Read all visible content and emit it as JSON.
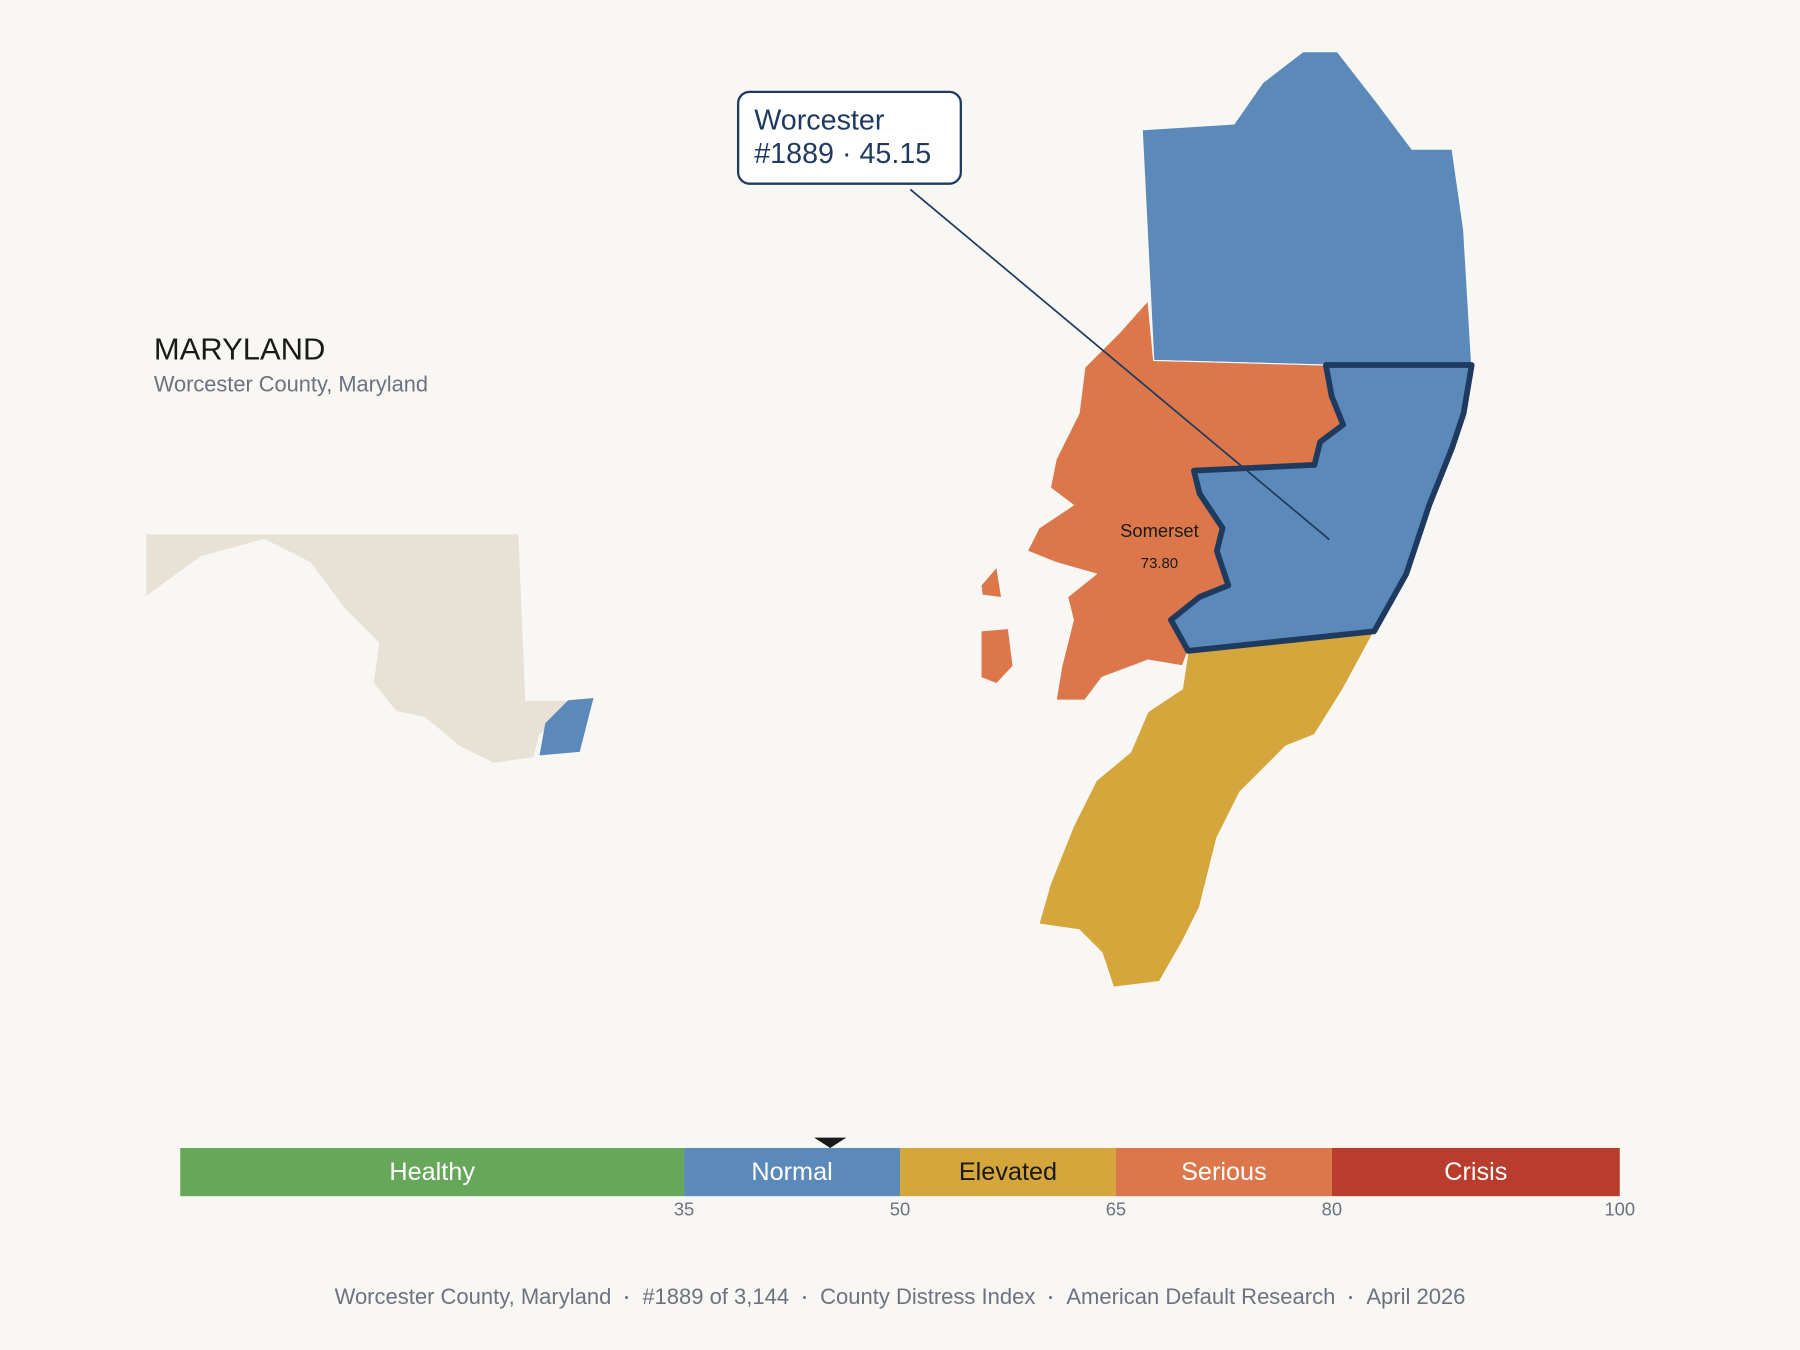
{
  "header": {
    "title": "MARYLAND",
    "subtitle": "Worcester County, Maryland"
  },
  "callout": {
    "name": "Worcester",
    "detail": "#1889 · 45.15",
    "value": 45.15
  },
  "neighbor": {
    "name": "Somerset",
    "value": 73.8,
    "value_label": "73.80"
  },
  "scale": {
    "lim": [
      0,
      100
    ],
    "ticks": [
      35,
      50,
      65,
      80,
      100
    ],
    "bands": [
      {
        "label": "Healthy",
        "color": "#67a75a"
      },
      {
        "label": "Normal",
        "color": "#5b8aba"
      },
      {
        "label": "Elevated",
        "color": "#d4a63c"
      },
      {
        "label": "Serious",
        "color": "#db774a"
      },
      {
        "label": "Crisis",
        "color": "#b93d2d"
      }
    ]
  },
  "footer": [
    "Worcester County, Maryland",
    "#1889 of 3,144",
    "County Distress Index",
    "American Default Research",
    "April 2026"
  ]
}
